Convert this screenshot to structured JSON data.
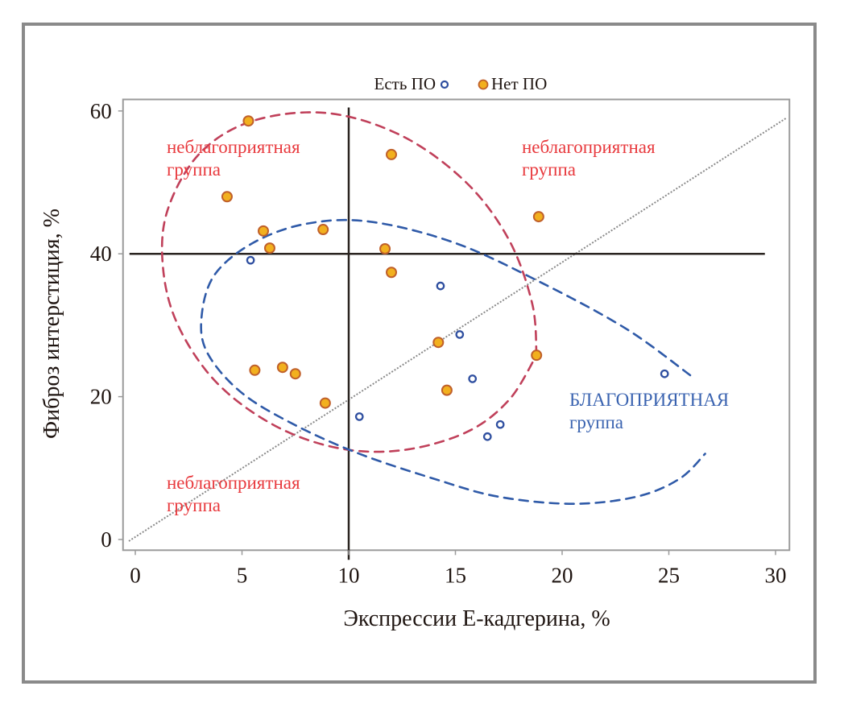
{
  "chart_data": {
    "type": "scatter",
    "title": "",
    "xlabel": "Экспрессии Е-кадгерина, %",
    "ylabel": "Фиброз интерстиция, %",
    "xlim": [
      -0.5,
      30.5
    ],
    "ylim": [
      -1.5,
      61.5
    ],
    "xticks": [
      0,
      5,
      10,
      15,
      20,
      25,
      30
    ],
    "yticks": [
      0,
      20,
      40,
      60
    ],
    "xtick_labels": [
      "0",
      "5",
      "10",
      "15",
      "20",
      "25",
      "30"
    ],
    "ytick_labels": [
      "0",
      "20",
      "40",
      "60"
    ],
    "grid": false,
    "legend": {
      "placement": "top-center",
      "entries": [
        "Есть ПО",
        "Нет ПО"
      ]
    },
    "reference_lines": {
      "vertical_x": 10,
      "horizontal_y": 40,
      "diagonal": {
        "from": [
          0,
          0
        ],
        "to": [
          30.5,
          59
        ]
      }
    },
    "series": [
      {
        "name": "Есть ПО",
        "marker": "open-circle",
        "color": "#2f4fa0",
        "points": [
          [
            5.4,
            39.1
          ],
          [
            14.3,
            35.5
          ],
          [
            15.2,
            28.7
          ],
          [
            15.8,
            22.5
          ],
          [
            10.5,
            17.2
          ],
          [
            17.1,
            16.1
          ],
          [
            16.5,
            14.4
          ],
          [
            24.8,
            23.2
          ]
        ]
      },
      {
        "name": "Нет ПО",
        "marker": "filled-circle",
        "color": "#f2b01e",
        "edge_color": "#c0602a",
        "points": [
          [
            5.3,
            58.6
          ],
          [
            12.0,
            53.9
          ],
          [
            4.3,
            48.0
          ],
          [
            18.9,
            45.2
          ],
          [
            6.0,
            43.2
          ],
          [
            8.8,
            43.4
          ],
          [
            6.3,
            40.8
          ],
          [
            11.7,
            40.7
          ],
          [
            12.0,
            37.4
          ],
          [
            14.2,
            27.6
          ],
          [
            18.8,
            25.8
          ],
          [
            14.6,
            20.9
          ],
          [
            5.6,
            23.7
          ],
          [
            6.9,
            24.1
          ],
          [
            7.5,
            23.2
          ],
          [
            8.9,
            19.1
          ]
        ]
      }
    ],
    "curves": [
      {
        "name": "red-dashed-ellipse",
        "color": "#c0405a",
        "points": [
          [
            18.8,
            25.8
          ],
          [
            18.6,
            33
          ],
          [
            17.5,
            42
          ],
          [
            15.5,
            50
          ],
          [
            12.5,
            56.5
          ],
          [
            9,
            59.7
          ],
          [
            5.5,
            58.6
          ],
          [
            3,
            54
          ],
          [
            1.5,
            46
          ],
          [
            1.3,
            38
          ],
          [
            2,
            30
          ],
          [
            3.8,
            22
          ],
          [
            6.5,
            16
          ],
          [
            9.5,
            12.8
          ],
          [
            12.5,
            12.5
          ],
          [
            15.5,
            15
          ],
          [
            17.5,
            19.5
          ],
          [
            18.8,
            25.8
          ]
        ]
      },
      {
        "name": "blue-dashed-curve",
        "color": "#2f5aa8",
        "points": [
          [
            26,
            23
          ],
          [
            23,
            29.5
          ],
          [
            19,
            36
          ],
          [
            15,
            41.5
          ],
          [
            11,
            44.5
          ],
          [
            8,
            44.2
          ],
          [
            5.5,
            41.5
          ],
          [
            3.7,
            37
          ],
          [
            3.1,
            31
          ],
          [
            3.4,
            26
          ],
          [
            5,
            20.5
          ],
          [
            7.5,
            16
          ],
          [
            10.5,
            12
          ],
          [
            14,
            8.5
          ],
          [
            17,
            6
          ],
          [
            20.5,
            5
          ],
          [
            23.5,
            6
          ],
          [
            25.5,
            8.5
          ],
          [
            26.7,
            12
          ]
        ]
      }
    ],
    "annotations": [
      {
        "text": [
          "неблагоприятная",
          "группа"
        ],
        "color": "#e8393d",
        "position": "top-left"
      },
      {
        "text": [
          "неблагоприятная",
          "группа"
        ],
        "color": "#e8393d",
        "position": "top-right"
      },
      {
        "text": [
          "неблагоприятная",
          "группа"
        ],
        "color": "#e8393d",
        "position": "bottom-left"
      },
      {
        "text": [
          "БЛАГОПРИЯТНАЯ",
          "группа"
        ],
        "color": "#3a63b0",
        "position": "bottom-right"
      }
    ]
  }
}
